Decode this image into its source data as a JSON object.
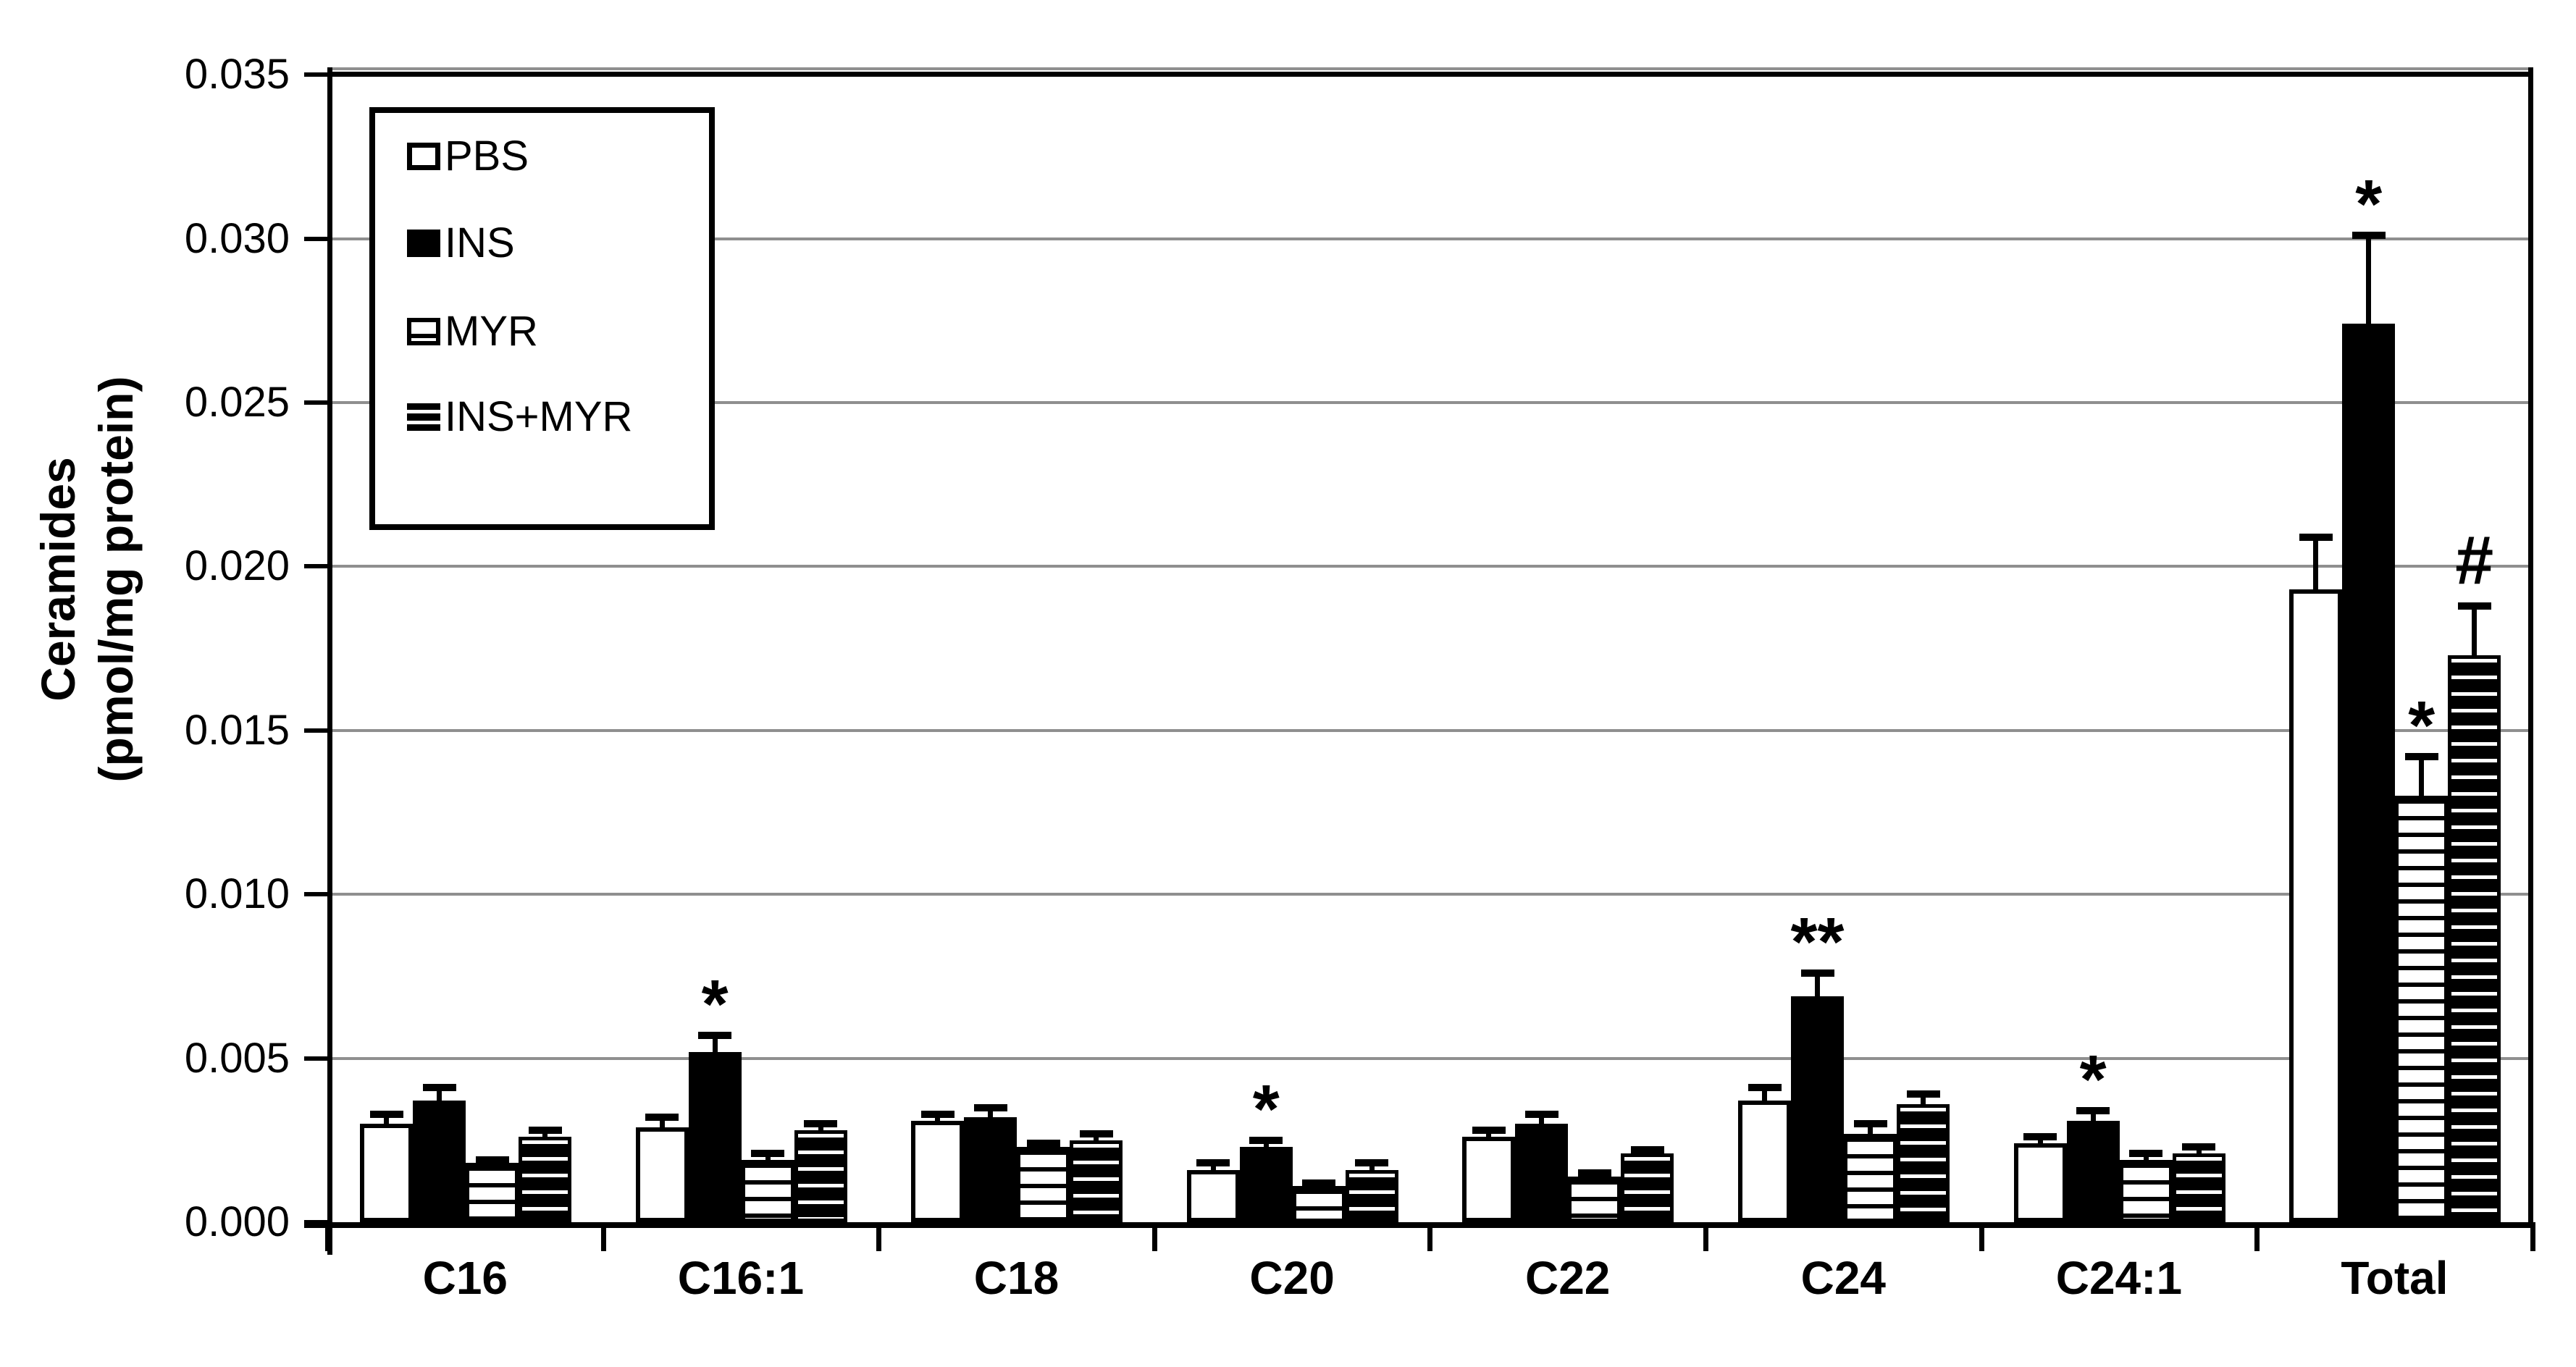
{
  "figure": {
    "background": "#ffffff",
    "colors": {
      "bar_fill": "#000000",
      "bar_open_fill": "#ffffff",
      "gridline": "#8f8f8f",
      "axis": "#000000",
      "text": "#000000"
    },
    "y_axis": {
      "title_line1": "Ceramides",
      "title_line2": "(pmol/mg protein)",
      "tick_labels": [
        "0.000",
        "0.005",
        "0.010",
        "0.015",
        "0.020",
        "0.025",
        "0.030",
        "0.035"
      ]
    },
    "legend": {
      "items": [
        {
          "label": "PBS",
          "pattern": "open-white"
        },
        {
          "label": "INS",
          "pattern": "solid-black"
        },
        {
          "label": "MYR",
          "pattern": "white-horizontal-stripes"
        },
        {
          "label": "INS+MYR",
          "pattern": "black-horizontal-stripes"
        }
      ]
    }
  },
  "chart_data": {
    "type": "bar",
    "title": "",
    "xlabel": "",
    "ylabel": "Ceramides (pmol/mg protein)",
    "ylim": [
      0,
      0.035
    ],
    "ytick_step": 0.005,
    "grid": true,
    "legend_position": "upper-left",
    "error_bars": true,
    "categories": [
      "C16",
      "C16:1",
      "C18",
      "C20",
      "C22",
      "C24",
      "C24:1",
      "Total"
    ],
    "series": [
      {
        "name": "PBS",
        "pattern": "open-white",
        "values": [
          0.003,
          0.0029,
          0.0031,
          0.0016,
          0.0026,
          0.0037,
          0.0024,
          0.0193
        ],
        "errors": [
          0.0003,
          0.0003,
          0.0002,
          0.0002,
          0.0002,
          0.0004,
          0.0002,
          0.0016
        ],
        "sig": [
          "",
          "",
          "",
          "",
          "",
          "",
          "",
          ""
        ]
      },
      {
        "name": "INS",
        "pattern": "solid-black",
        "values": [
          0.0037,
          0.0052,
          0.0032,
          0.0023,
          0.003,
          0.0069,
          0.0031,
          0.0274
        ],
        "errors": [
          0.0004,
          0.0005,
          0.0003,
          0.0002,
          0.0003,
          0.0007,
          0.0003,
          0.0027
        ],
        "sig": [
          "",
          "*",
          "",
          "*",
          "",
          "**",
          "*",
          "*"
        ]
      },
      {
        "name": "MYR",
        "pattern": "white-horizontal-stripes",
        "values": [
          0.0018,
          0.0019,
          0.0023,
          0.0011,
          0.0014,
          0.0027,
          0.0019,
          0.013
        ],
        "errors": [
          0.0001,
          0.0002,
          0.0001,
          0.0001,
          0.0001,
          0.0003,
          0.0002,
          0.0012
        ],
        "sig": [
          "",
          "",
          "",
          "",
          "",
          "",
          "",
          "*"
        ]
      },
      {
        "name": "INS+MYR",
        "pattern": "black-horizontal-stripes",
        "values": [
          0.0026,
          0.0028,
          0.0025,
          0.0016,
          0.0021,
          0.0036,
          0.0021,
          0.0173
        ],
        "errors": [
          0.0002,
          0.0002,
          0.0002,
          0.0002,
          0.0001,
          0.0003,
          0.0002,
          0.0015
        ],
        "sig": [
          "",
          "",
          "",
          "",
          "",
          "",
          "",
          "#"
        ]
      }
    ]
  }
}
